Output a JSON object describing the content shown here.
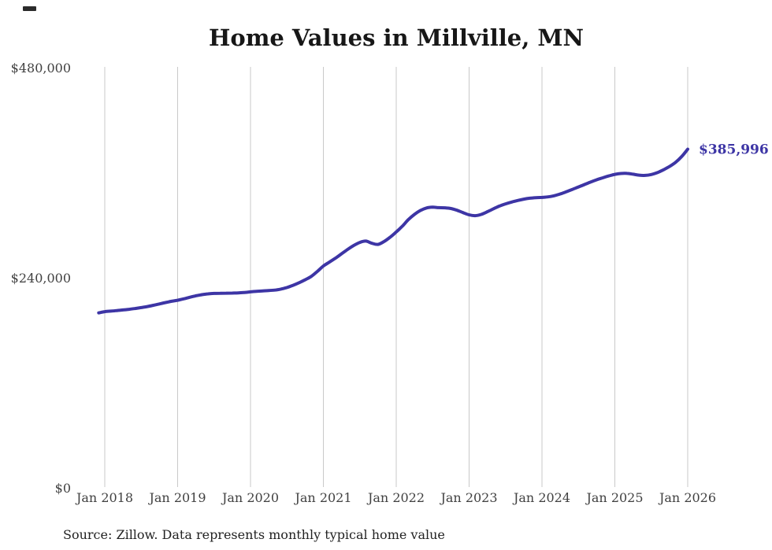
{
  "title": "Home Values in Millville, MN",
  "source_note": "Source: Zillow. Data represents monthly typical home value",
  "colors": {
    "line": "#3d35a5",
    "end_label": "#3d35a5",
    "grid": "#c9c9c9",
    "axis_text": "#414141",
    "title_text": "#171717",
    "source_text": "#222222",
    "background": "#ffffff"
  },
  "chart_data": {
    "type": "line",
    "title": "Home Values in Millville, MN",
    "xlabel": "",
    "ylabel": "",
    "ylim": [
      0,
      480000
    ],
    "y_ticks": [
      0,
      240000,
      480000
    ],
    "y_tick_labels": [
      "$0",
      "$240,000",
      "$480,000"
    ],
    "x_tick_labels": [
      "Jan 2018",
      "Jan 2019",
      "Jan 2020",
      "Jan 2021",
      "Jan 2022",
      "Jan 2023",
      "Jan 2024",
      "Jan 2025",
      "Jan 2026"
    ],
    "grid": "vertical-only",
    "legend": "none",
    "frequency": "monthly",
    "x_start": "Dec 2017",
    "x_end": "Jan 2026",
    "end_label": "$385,996",
    "latest_value": 385996,
    "series": [
      {
        "name": "Typical home value",
        "values": [
          199000,
          200400,
          201000,
          201600,
          202300,
          203100,
          204000,
          205000,
          206200,
          207600,
          209200,
          210800,
          212200,
          213400,
          215000,
          216800,
          218500,
          219800,
          220700,
          221200,
          221400,
          221500,
          221600,
          221800,
          222300,
          223000,
          223600,
          224100,
          224500,
          225000,
          226200,
          228000,
          230500,
          233400,
          236800,
          240600,
          246300,
          252500,
          257000,
          261500,
          266500,
          271500,
          276000,
          279500,
          281000,
          278500,
          277200,
          280500,
          285500,
          291400,
          298000,
          305500,
          311500,
          316000,
          318800,
          319700,
          319200,
          319000,
          318200,
          316200,
          313500,
          311000,
          310000,
          311500,
          314500,
          317800,
          321000,
          323500,
          325600,
          327400,
          328900,
          330000,
          330600,
          330900,
          331500,
          332800,
          334800,
          337300,
          340000,
          342800,
          345600,
          348400,
          351000,
          353300,
          355400,
          357200,
          358200,
          358300,
          357400,
          356300,
          356000,
          357000,
          359200,
          362400,
          366200,
          371000,
          377500,
          385996
        ]
      }
    ]
  }
}
